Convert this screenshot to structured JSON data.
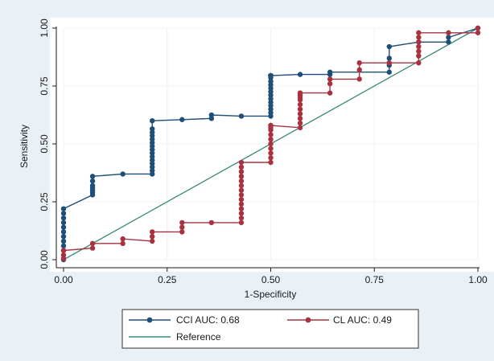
{
  "chart_data": {
    "type": "line",
    "title": "",
    "xlabel": "1-Specificity",
    "ylabel": "Sensitivity",
    "xlim": [
      0,
      1
    ],
    "ylim": [
      0,
      1
    ],
    "xticks": [
      "0.00",
      "0.25",
      "0.50",
      "0.75",
      "1.00"
    ],
    "yticks": [
      "0.00",
      "0.25",
      "0.50",
      "0.75",
      "1.00"
    ],
    "grid": true,
    "legend_position": "bottom",
    "series": [
      {
        "name": "CCI AUC: 0.68",
        "color": "#1f4e79",
        "marker": "circle",
        "x": [
          0,
          0,
          0,
          0,
          0,
          0,
          0,
          0,
          0,
          0,
          0,
          0,
          0.07,
          0.07,
          0.07,
          0.07,
          0.07,
          0.07,
          0.07,
          0.143,
          0.214,
          0.214,
          0.214,
          0.214,
          0.214,
          0.214,
          0.214,
          0.214,
          0.214,
          0.214,
          0.214,
          0.214,
          0.214,
          0.214,
          0.214,
          0.286,
          0.357,
          0.357,
          0.429,
          0.5,
          0.5,
          0.5,
          0.5,
          0.5,
          0.5,
          0.5,
          0.5,
          0.5,
          0.5,
          0.5,
          0.5,
          0.5,
          0.5,
          0.5,
          0.5,
          0.5,
          0.5,
          0.5,
          0.571,
          0.643,
          0.643,
          0.786,
          0.786,
          0.786,
          0.786,
          0.857,
          0.929,
          0.929,
          1.0
        ],
        "y": [
          0,
          0.02,
          0.04,
          0.06,
          0.08,
          0.1,
          0.12,
          0.14,
          0.16,
          0.18,
          0.2,
          0.22,
          0.28,
          0.29,
          0.3,
          0.31,
          0.32,
          0.34,
          0.36,
          0.37,
          0.37,
          0.385,
          0.4,
          0.415,
          0.43,
          0.445,
          0.46,
          0.475,
          0.49,
          0.505,
          0.52,
          0.535,
          0.55,
          0.565,
          0.6,
          0.605,
          0.61,
          0.625,
          0.62,
          0.62,
          0.635,
          0.65,
          0.665,
          0.68,
          0.695,
          0.71,
          0.725,
          0.74,
          0.755,
          0.77,
          0.785,
          0.795,
          0.795,
          0.795,
          0.795,
          0.795,
          0.795,
          0.795,
          0.8,
          0.8,
          0.81,
          0.81,
          0.84,
          0.87,
          0.92,
          0.94,
          0.94,
          0.96,
          1.0
        ]
      },
      {
        "name": "CL AUC: 0.49",
        "color": "#a83240",
        "marker": "circle",
        "x": [
          0,
          0,
          0,
          0.07,
          0.07,
          0.143,
          0.143,
          0.214,
          0.214,
          0.214,
          0.286,
          0.286,
          0.286,
          0.357,
          0.429,
          0.429,
          0.429,
          0.429,
          0.429,
          0.429,
          0.429,
          0.429,
          0.429,
          0.429,
          0.429,
          0.429,
          0.429,
          0.429,
          0.5,
          0.5,
          0.5,
          0.5,
          0.5,
          0.5,
          0.5,
          0.5,
          0.5,
          0.5,
          0.5,
          0.571,
          0.571,
          0.571,
          0.571,
          0.571,
          0.571,
          0.571,
          0.571,
          0.571,
          0.571,
          0.571,
          0.643,
          0.643,
          0.643,
          0.714,
          0.714,
          0.714,
          0.786,
          0.857,
          0.857,
          0.857,
          0.857,
          0.857,
          0.857,
          0.857,
          0.929,
          1.0,
          1.0
        ],
        "y": [
          0.005,
          0.02,
          0.04,
          0.05,
          0.07,
          0.07,
          0.09,
          0.08,
          0.1,
          0.12,
          0.12,
          0.14,
          0.16,
          0.16,
          0.16,
          0.18,
          0.2,
          0.22,
          0.24,
          0.26,
          0.28,
          0.3,
          0.32,
          0.34,
          0.36,
          0.38,
          0.4,
          0.42,
          0.42,
          0.44,
          0.46,
          0.48,
          0.5,
          0.52,
          0.54,
          0.56,
          0.57,
          0.58,
          0.58,
          0.57,
          0.59,
          0.61,
          0.63,
          0.65,
          0.67,
          0.69,
          0.7,
          0.71,
          0.72,
          0.72,
          0.72,
          0.76,
          0.78,
          0.78,
          0.82,
          0.85,
          0.85,
          0.85,
          0.88,
          0.9,
          0.92,
          0.94,
          0.96,
          0.98,
          0.98,
          0.98,
          1.0
        ]
      },
      {
        "name": "Reference",
        "color": "#3a8a7a",
        "marker": "none",
        "x": [
          0,
          1
        ],
        "y": [
          0,
          1
        ]
      }
    ]
  },
  "colors": {
    "outer_bg": "#e9f0f6",
    "plot_bg": "#ffffff",
    "grid": "#eef2f5",
    "axis": "#1a1a1a"
  }
}
